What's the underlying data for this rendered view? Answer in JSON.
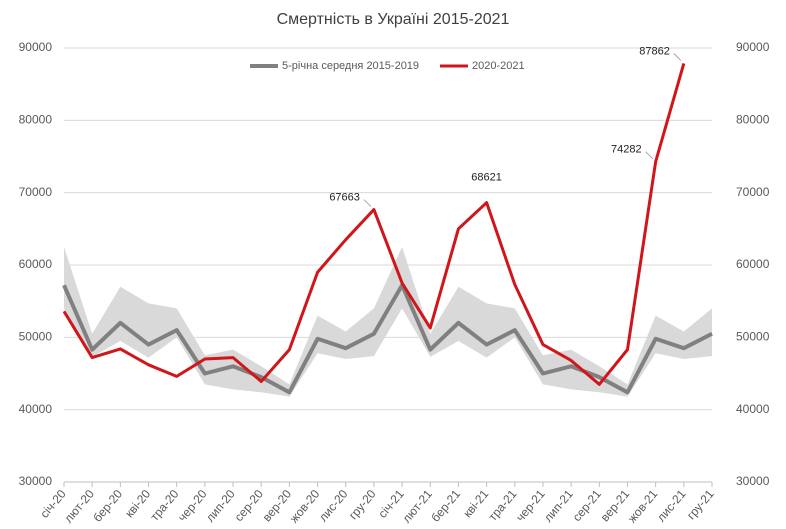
{
  "chart_data": {
    "type": "line",
    "title": "Смертність в Україні 2015-2021",
    "categories": [
      "січ-20",
      "лют-20",
      "бер-20",
      "кві-20",
      "тра-20",
      "чер-20",
      "лип-20",
      "сер-20",
      "вер-20",
      "жов-20",
      "лис-20",
      "гру-20",
      "січ-21",
      "лют-21",
      "бер-21",
      "кві-21",
      "тра-21",
      "чер-21",
      "лип-21",
      "сер-21",
      "вер-21",
      "жов-21",
      "лис-21",
      "гру-21"
    ],
    "series": [
      {
        "name": "5-річна середня 2015-2019",
        "color": "#808080",
        "values": [
          57200,
          48300,
          52000,
          49000,
          51000,
          45000,
          46000,
          44500,
          42400,
          49800,
          48500,
          50500,
          57200,
          48300,
          52000,
          49000,
          51000,
          45000,
          46000,
          44500,
          42400,
          49800,
          48500,
          50500
        ]
      },
      {
        "name": "2020-2021",
        "color": "#d0161b",
        "values": [
          53600,
          47200,
          48400,
          46200,
          44600,
          47000,
          47200,
          43900,
          48300,
          59000,
          63500,
          67663,
          57500,
          51300,
          65000,
          68621,
          57300,
          49000,
          46800,
          43500,
          48300,
          74282,
          87862,
          null
        ]
      }
    ],
    "band_high": [
      62500,
      50500,
      57000,
      54700,
      54000,
      47500,
      48300,
      46000,
      43500,
      53000,
      50800,
      54000,
      62500,
      50500,
      57000,
      54700,
      54000,
      47500,
      48300,
      46000,
      43500,
      53000,
      50800,
      54000
    ],
    "band_low": [
      54000,
      47300,
      49500,
      47200,
      50000,
      43500,
      42800,
      42400,
      41800,
      47800,
      47000,
      47400,
      54000,
      47300,
      49500,
      47200,
      50000,
      43500,
      42800,
      42400,
      41800,
      47800,
      47000,
      47400
    ],
    "band_color": "#d9d9d9",
    "labeled_points": [
      11,
      15,
      21,
      22
    ],
    "ylim": [
      30000,
      90000
    ],
    "yticks": [
      30000,
      40000,
      50000,
      60000,
      70000,
      80000,
      90000
    ],
    "y2lim": [
      30000,
      90000
    ],
    "y2ticks": [
      30000,
      40000,
      50000,
      60000,
      70000,
      80000,
      90000
    ],
    "grid": true,
    "legend": "top"
  }
}
